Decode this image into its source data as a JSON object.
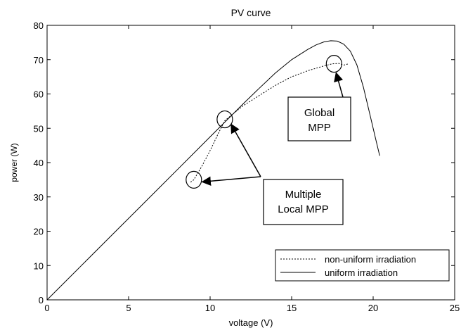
{
  "chart_data": {
    "type": "line",
    "title": "PV curve",
    "xlabel": "voltage (V)",
    "ylabel": "power (W)",
    "xlim": [
      0,
      25
    ],
    "ylim": [
      0,
      80
    ],
    "xticks": [
      "0",
      "5",
      "10",
      "15",
      "20",
      "25"
    ],
    "yticks": [
      "0",
      "10",
      "20",
      "30",
      "40",
      "50",
      "60",
      "70",
      "80"
    ],
    "grid": false,
    "legend_position": "bottom-right",
    "series": [
      {
        "name": "non-uniform irradiation",
        "style": "dotted",
        "color": "#000000",
        "x": [
          8.8,
          9.0,
          9.5,
          10.0,
          10.5,
          10.9,
          11.3,
          12.0,
          13.0,
          14.0,
          15.0,
          16.0,
          17.0,
          17.5,
          17.9,
          18.2,
          18.5
        ],
        "y": [
          34.3,
          35.0,
          39.0,
          43.5,
          48.5,
          52.2,
          53.8,
          56.5,
          59.5,
          62.5,
          65.0,
          66.8,
          68.2,
          68.8,
          68.9,
          68.4,
          68.8
        ]
      },
      {
        "name": "uniform irradiation",
        "style": "solid",
        "color": "#000000",
        "x": [
          0,
          2,
          4,
          6,
          8,
          10,
          12,
          13,
          14,
          15,
          16,
          16.5,
          17,
          17.4,
          17.8,
          18.2,
          18.6,
          19.0,
          19.4,
          19.8,
          20.2,
          20.4
        ],
        "y": [
          0,
          9.5,
          19.0,
          28.5,
          38.0,
          47.5,
          57.0,
          61.6,
          66.1,
          70.0,
          73.0,
          74.3,
          75.2,
          75.5,
          75.4,
          74.5,
          72.5,
          68.5,
          62.0,
          54.0,
          46.0,
          42.0
        ]
      }
    ],
    "annotations": {
      "global": {
        "lines": [
          "Global",
          "MPP"
        ],
        "circle": {
          "x": 17.6,
          "y": 68.8
        }
      },
      "local": {
        "lines": [
          "Multiple",
          "Local MPP"
        ],
        "circles": [
          {
            "x": 10.9,
            "y": 52.6
          },
          {
            "x": 9.0,
            "y": 35.0
          }
        ]
      }
    }
  }
}
